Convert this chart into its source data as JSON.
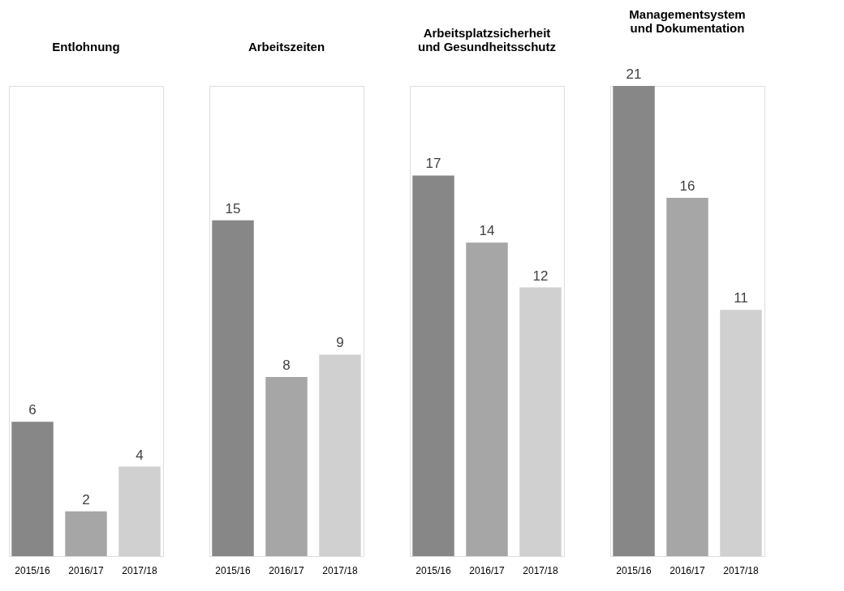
{
  "chart_data": [
    {
      "type": "bar",
      "title": "Entlohnung",
      "categories": [
        "2015/16",
        "2016/17",
        "2017/18"
      ],
      "values": [
        6,
        2,
        4
      ],
      "colors": [
        "#878787",
        "#a6a6a6",
        "#d0d0d0"
      ],
      "data_labels": true,
      "ylim": [
        0,
        21
      ],
      "tick_labels": "x",
      "grid": false
    },
    {
      "type": "bar",
      "title": "Arbeitszeiten",
      "categories": [
        "2015/16",
        "2016/17",
        "2017/18"
      ],
      "values": [
        15,
        8,
        9
      ],
      "colors": [
        "#878787",
        "#a6a6a6",
        "#d0d0d0"
      ],
      "data_labels": true,
      "ylim": [
        0,
        21
      ],
      "tick_labels": "x",
      "grid": false
    },
    {
      "type": "bar",
      "title": "Arbeitsplatzsicherheit\nund Gesundheitsschutz",
      "categories": [
        "2015/16",
        "2016/17",
        "2017/18"
      ],
      "values": [
        17,
        14,
        12
      ],
      "colors": [
        "#878787",
        "#a6a6a6",
        "#d0d0d0"
      ],
      "data_labels": true,
      "ylim": [
        0,
        21
      ],
      "tick_labels": "x",
      "grid": false
    },
    {
      "type": "bar",
      "title": "Managementsystem\nund Dokumentation",
      "categories": [
        "2015/16",
        "2016/17",
        "2017/18"
      ],
      "values": [
        21,
        16,
        11
      ],
      "colors": [
        "#878787",
        "#a6a6a6",
        "#d0d0d0"
      ],
      "data_labels": true,
      "ylim": [
        0,
        21
      ],
      "tick_labels": "x",
      "grid": false
    }
  ]
}
